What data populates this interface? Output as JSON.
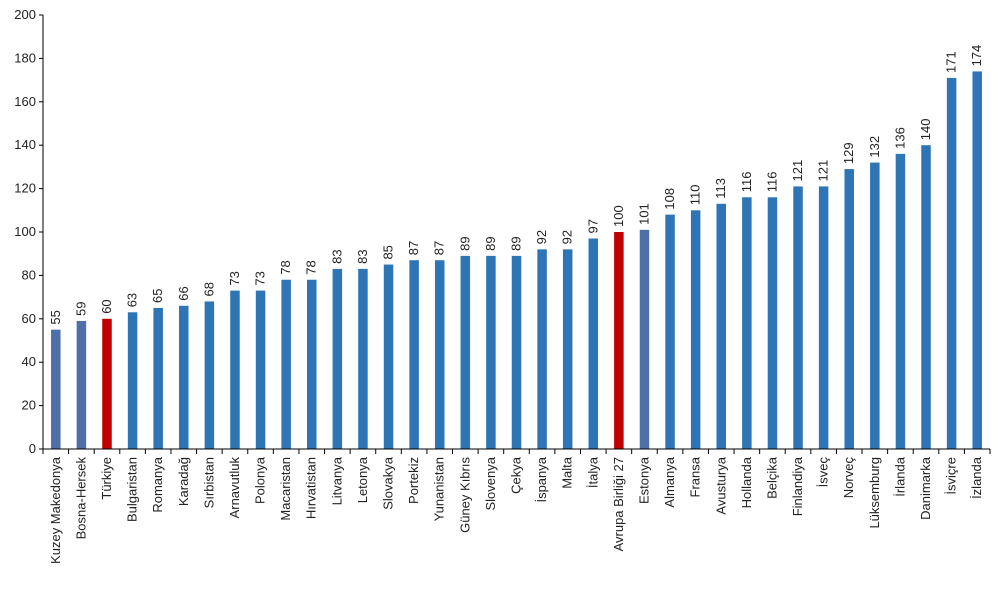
{
  "chart_data": {
    "type": "bar",
    "title": "",
    "xlabel": "",
    "ylabel": "",
    "ylim": [
      0,
      200
    ],
    "yticks": [
      0,
      20,
      40,
      60,
      80,
      100,
      120,
      140,
      160,
      180,
      200
    ],
    "grid": false,
    "categories": [
      "Kuzey Makedonya",
      "Bosna-Hersek",
      "Türkiye",
      "Bulgaristan",
      "Romanya",
      "Karadağ",
      "Sırbistan",
      "Arnavutluk",
      "Polonya",
      "Macaristan",
      "Hırvatistan",
      "Litvanya",
      "Letonya",
      "Slovakya",
      "Portekiz",
      "Yunanistan",
      "Güney Kıbrıs",
      "Slovenya",
      "Çekya",
      "İspanya",
      "Malta",
      "İtalya",
      "Avrupa Birliği 27",
      "Estonya",
      "Almanya",
      "Fransa",
      "Avusturya",
      "Hollanda",
      "Belçika",
      "Finlandiya",
      "İsveç",
      "Norveç",
      "Lüksemburg",
      "İrlanda",
      "Danimarka",
      "İsviçre",
      "İzlanda"
    ],
    "values": [
      55,
      59,
      60,
      63,
      65,
      66,
      68,
      73,
      73,
      78,
      78,
      83,
      83,
      85,
      87,
      87,
      89,
      89,
      89,
      92,
      92,
      97,
      100,
      101,
      108,
      110,
      113,
      116,
      116,
      121,
      121,
      129,
      132,
      136,
      140,
      171,
      174
    ],
    "colors": {
      "default": "#2e75b6",
      "highlight": "#c00000",
      "non_eu": "#4f6fa8",
      "axis": "#000000"
    },
    "highlighted": [
      "Türkiye",
      "Avrupa Birliği 27"
    ],
    "non_eu": [
      "Kuzey Makedonya",
      "Bosna-Hersek",
      "Estonya"
    ]
  }
}
